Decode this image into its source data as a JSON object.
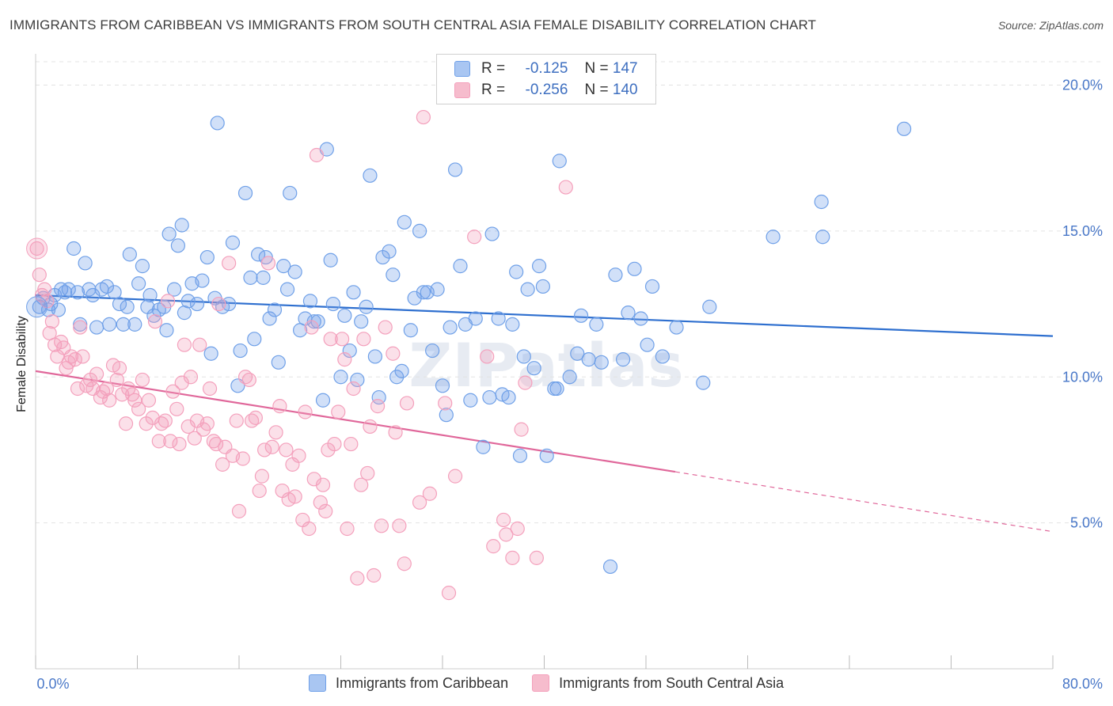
{
  "title": "IMMIGRANTS FROM CARIBBEAN VS IMMIGRANTS FROM SOUTH CENTRAL ASIA FEMALE DISABILITY CORRELATION CHART",
  "source": "Source: ZipAtlas.com",
  "watermark": "ZIPatlas",
  "legend": {
    "r_label": "R =",
    "n_label": "N =",
    "rows": [
      {
        "r": "-0.125",
        "n": "147",
        "color": "#a9c6f2"
      },
      {
        "r": "-0.256",
        "n": "140",
        "color": "#f6bccd"
      }
    ]
  },
  "chart_data": {
    "type": "scatter",
    "ylabel": "Female Disability",
    "xlim": [
      0,
      80
    ],
    "ylim": [
      0,
      20.8
    ],
    "x_tick_labels": [
      "0.0%",
      "80.0%"
    ],
    "y_ticks": [
      {
        "value": 5,
        "label": "5.0%"
      },
      {
        "value": 10,
        "label": "10.0%"
      },
      {
        "value": 15,
        "label": "15.0%"
      },
      {
        "value": 20,
        "label": "20.0%"
      }
    ],
    "series": [
      {
        "name": "Immigrants from Caribbean",
        "color": "#6fa0e8",
        "line_color": "#2e6fcf",
        "trend": {
          "x0": 0,
          "y0": 12.8,
          "x1": 80,
          "y1": 11.4
        },
        "points": [
          [
            0.3,
            12.4
          ],
          [
            0.6,
            12.7
          ],
          [
            1,
            12.3
          ],
          [
            1.2,
            12.5
          ],
          [
            1.5,
            12.8
          ],
          [
            1.8,
            12.3
          ],
          [
            2,
            13
          ],
          [
            2.3,
            12.9
          ],
          [
            2.6,
            13
          ],
          [
            3,
            14.4
          ],
          [
            3.3,
            12.9
          ],
          [
            3.5,
            11.8
          ],
          [
            3.9,
            13.9
          ],
          [
            4.2,
            13
          ],
          [
            4.5,
            12.8
          ],
          [
            4.8,
            11.7
          ],
          [
            5.2,
            13
          ],
          [
            5.6,
            13.1
          ],
          [
            5.8,
            11.8
          ],
          [
            6.2,
            12.9
          ],
          [
            6.6,
            12.5
          ],
          [
            6.9,
            11.8
          ],
          [
            7.2,
            12.4
          ],
          [
            7.4,
            14.2
          ],
          [
            7.8,
            11.8
          ],
          [
            8.1,
            13.2
          ],
          [
            8.4,
            13.8
          ],
          [
            8.8,
            12.4
          ],
          [
            9,
            12.8
          ],
          [
            9.3,
            12.1
          ],
          [
            9.7,
            12.3
          ],
          [
            10.1,
            12.4
          ],
          [
            10.3,
            11.6
          ],
          [
            10.5,
            14.9
          ],
          [
            10.9,
            13
          ],
          [
            11.2,
            14.5
          ],
          [
            11.5,
            15.2
          ],
          [
            11.7,
            12.2
          ],
          [
            12,
            12.6
          ],
          [
            12.3,
            13.2
          ],
          [
            12.7,
            12.5
          ],
          [
            13.1,
            13.3
          ],
          [
            13.5,
            14.1
          ],
          [
            13.8,
            10.8
          ],
          [
            14.1,
            12.7
          ],
          [
            14.3,
            18.7
          ],
          [
            14.7,
            12.4
          ],
          [
            15.2,
            12.5
          ],
          [
            15.5,
            14.6
          ],
          [
            15.9,
            9.7
          ],
          [
            16.1,
            10.9
          ],
          [
            16.5,
            16.3
          ],
          [
            16.9,
            13.4
          ],
          [
            17.2,
            11.3
          ],
          [
            17.5,
            14.2
          ],
          [
            17.9,
            13.4
          ],
          [
            18.1,
            14.1
          ],
          [
            18.4,
            12
          ],
          [
            18.8,
            12.3
          ],
          [
            19.1,
            10.5
          ],
          [
            19.5,
            13.8
          ],
          [
            19.8,
            13
          ],
          [
            20,
            16.3
          ],
          [
            20.4,
            13.6
          ],
          [
            20.8,
            11.6
          ],
          [
            21.2,
            12
          ],
          [
            21.6,
            12.6
          ],
          [
            21.9,
            11.9
          ],
          [
            22.2,
            11.9
          ],
          [
            22.6,
            9.2
          ],
          [
            22.9,
            17.8
          ],
          [
            23.2,
            14
          ],
          [
            23.4,
            12.5
          ],
          [
            24,
            10
          ],
          [
            24.3,
            12.1
          ],
          [
            24.7,
            10.9
          ],
          [
            25,
            12.9
          ],
          [
            25.3,
            9.9
          ],
          [
            25.6,
            11.9
          ],
          [
            26,
            12.4
          ],
          [
            26.3,
            16.9
          ],
          [
            26.7,
            10.7
          ],
          [
            27,
            9.3
          ],
          [
            27.3,
            14.1
          ],
          [
            27.8,
            14.3
          ],
          [
            28.1,
            13.5
          ],
          [
            28.4,
            10
          ],
          [
            28.8,
            10.2
          ],
          [
            29,
            15.3
          ],
          [
            29.5,
            11.6
          ],
          [
            29.8,
            12.7
          ],
          [
            30.2,
            15
          ],
          [
            30.5,
            12.9
          ],
          [
            30.8,
            12.9
          ],
          [
            31.2,
            10.9
          ],
          [
            31.6,
            13
          ],
          [
            32,
            9.7
          ],
          [
            32.3,
            8.7
          ],
          [
            32.6,
            11.7
          ],
          [
            33,
            17.1
          ],
          [
            33.4,
            13.8
          ],
          [
            33.8,
            11.8
          ],
          [
            34.2,
            9.2
          ],
          [
            34.6,
            12
          ],
          [
            35.2,
            7.6
          ],
          [
            35.7,
            9.3
          ],
          [
            35.9,
            14.9
          ],
          [
            36.4,
            12
          ],
          [
            36.7,
            9.4
          ],
          [
            37.2,
            9.3
          ],
          [
            37.5,
            11.8
          ],
          [
            37.8,
            13.6
          ],
          [
            38.1,
            7.3
          ],
          [
            38.4,
            10.7
          ],
          [
            38.7,
            13
          ],
          [
            39.2,
            10.3
          ],
          [
            39.6,
            13.8
          ],
          [
            39.9,
            13.1
          ],
          [
            40.2,
            7.3
          ],
          [
            40.8,
            9.6
          ],
          [
            41,
            9.6
          ],
          [
            41.2,
            17.4
          ],
          [
            42,
            10
          ],
          [
            42.6,
            10.8
          ],
          [
            42.9,
            12.1
          ],
          [
            43.5,
            10.6
          ],
          [
            44.1,
            11.8
          ],
          [
            44.5,
            10.5
          ],
          [
            45.2,
            3.5
          ],
          [
            45.6,
            13.5
          ],
          [
            46.2,
            10.6
          ],
          [
            46.6,
            12.2
          ],
          [
            47.1,
            13.7
          ],
          [
            47.6,
            12
          ],
          [
            48.1,
            11.1
          ],
          [
            48.5,
            13.1
          ],
          [
            49.3,
            10.7
          ],
          [
            50.4,
            11.7
          ],
          [
            52.5,
            9.8
          ],
          [
            53,
            12.4
          ],
          [
            58,
            14.8
          ],
          [
            61.8,
            16
          ],
          [
            61.9,
            14.8
          ],
          [
            68.3,
            18.5
          ]
        ]
      },
      {
        "name": "Immigrants from South Central Asia",
        "color": "#f4a0bc",
        "line_color": "#e0679a",
        "trend": {
          "x0": 0,
          "y0": 10.2,
          "x1": 50.3,
          "y1": 6.75
        },
        "trend_ext": {
          "x0": 50.3,
          "y0": 6.75,
          "x1": 80,
          "y1": 4.7
        },
        "points": [
          [
            0.1,
            14.4
          ],
          [
            0.3,
            13.5
          ],
          [
            0.5,
            12.8
          ],
          [
            0.7,
            13
          ],
          [
            0.9,
            12.6
          ],
          [
            1.1,
            11.5
          ],
          [
            1.3,
            11.9
          ],
          [
            1.5,
            11.1
          ],
          [
            1.7,
            10.7
          ],
          [
            2,
            11.2
          ],
          [
            2.2,
            11
          ],
          [
            2.4,
            10.3
          ],
          [
            2.6,
            10.5
          ],
          [
            2.8,
            10.7
          ],
          [
            3.1,
            10.6
          ],
          [
            3.3,
            9.6
          ],
          [
            3.5,
            11.7
          ],
          [
            3.7,
            10.7
          ],
          [
            4,
            9.7
          ],
          [
            4.3,
            9.9
          ],
          [
            4.5,
            9.6
          ],
          [
            4.8,
            10.1
          ],
          [
            5.1,
            9.3
          ],
          [
            5.3,
            9.5
          ],
          [
            5.6,
            9.6
          ],
          [
            5.8,
            9.2
          ],
          [
            6.1,
            10.4
          ],
          [
            6.4,
            9.9
          ],
          [
            6.6,
            10.3
          ],
          [
            6.8,
            9.4
          ],
          [
            7.1,
            8.4
          ],
          [
            7.3,
            9.6
          ],
          [
            7.6,
            9.4
          ],
          [
            7.8,
            9.2
          ],
          [
            8.1,
            8.9
          ],
          [
            8.4,
            9.9
          ],
          [
            8.7,
            8.4
          ],
          [
            8.9,
            9.2
          ],
          [
            9.2,
            8.6
          ],
          [
            9.4,
            11.9
          ],
          [
            9.7,
            7.8
          ],
          [
            9.9,
            8.4
          ],
          [
            10.2,
            8.5
          ],
          [
            10.4,
            12.6
          ],
          [
            10.6,
            7.8
          ],
          [
            10.8,
            9.5
          ],
          [
            11.1,
            8.9
          ],
          [
            11.3,
            7.7
          ],
          [
            11.5,
            9.8
          ],
          [
            11.7,
            11.1
          ],
          [
            12,
            8.3
          ],
          [
            12.2,
            10
          ],
          [
            12.5,
            7.9
          ],
          [
            12.7,
            8.5
          ],
          [
            12.9,
            11.1
          ],
          [
            13.2,
            8.2
          ],
          [
            13.5,
            8.4
          ],
          [
            13.7,
            9.6
          ],
          [
            14,
            7.8
          ],
          [
            14.2,
            7.7
          ],
          [
            14.4,
            12.5
          ],
          [
            14.7,
            7
          ],
          [
            14.9,
            7.6
          ],
          [
            15.2,
            13.9
          ],
          [
            15.5,
            7.3
          ],
          [
            15.8,
            8.5
          ],
          [
            16,
            5.4
          ],
          [
            16.3,
            7.2
          ],
          [
            16.5,
            10
          ],
          [
            16.8,
            9.9
          ],
          [
            17,
            8.5
          ],
          [
            17.3,
            8.6
          ],
          [
            17.6,
            6.1
          ],
          [
            17.8,
            6.6
          ],
          [
            18,
            7.5
          ],
          [
            18.3,
            13.9
          ],
          [
            18.6,
            7.6
          ],
          [
            18.9,
            8.1
          ],
          [
            19.2,
            9
          ],
          [
            19.4,
            6.1
          ],
          [
            19.7,
            7.5
          ],
          [
            19.9,
            5.8
          ],
          [
            20.2,
            7
          ],
          [
            20.4,
            5.9
          ],
          [
            20.7,
            7.3
          ],
          [
            21,
            5.1
          ],
          [
            21.2,
            8.8
          ],
          [
            21.5,
            4.8
          ],
          [
            21.7,
            11.7
          ],
          [
            21.9,
            6.5
          ],
          [
            22.1,
            17.6
          ],
          [
            22.4,
            5.7
          ],
          [
            22.6,
            6.3
          ],
          [
            22.8,
            5.4
          ],
          [
            23,
            7.5
          ],
          [
            23.2,
            11.3
          ],
          [
            23.5,
            7.7
          ],
          [
            23.8,
            8.8
          ],
          [
            24.1,
            11.3
          ],
          [
            24.3,
            10.6
          ],
          [
            24.5,
            4.8
          ],
          [
            24.8,
            7.7
          ],
          [
            25,
            9.6
          ],
          [
            25.3,
            3.1
          ],
          [
            25.6,
            6.3
          ],
          [
            25.8,
            11.3
          ],
          [
            26.1,
            6.7
          ],
          [
            26.3,
            8.3
          ],
          [
            26.6,
            3.2
          ],
          [
            26.9,
            9
          ],
          [
            27.2,
            4.9
          ],
          [
            27.5,
            11.7
          ],
          [
            28.1,
            10.8
          ],
          [
            28.3,
            8.1
          ],
          [
            28.6,
            4.9
          ],
          [
            29,
            3.6
          ],
          [
            29.2,
            9.1
          ],
          [
            30.2,
            5.7
          ],
          [
            30.5,
            18.9
          ],
          [
            31,
            6
          ],
          [
            32.2,
            9.1
          ],
          [
            32.5,
            2.6
          ],
          [
            33,
            6.6
          ],
          [
            34.5,
            14.8
          ],
          [
            35.5,
            10.7
          ],
          [
            36,
            4.2
          ],
          [
            36.8,
            5.1
          ],
          [
            37,
            4.6
          ],
          [
            37.5,
            3.8
          ],
          [
            37.9,
            4.8
          ],
          [
            38.2,
            8.2
          ],
          [
            38.5,
            9.8
          ],
          [
            39.4,
            3.8
          ],
          [
            41.7,
            16.5
          ],
          [
            43.5,
            20
          ]
        ]
      }
    ]
  }
}
